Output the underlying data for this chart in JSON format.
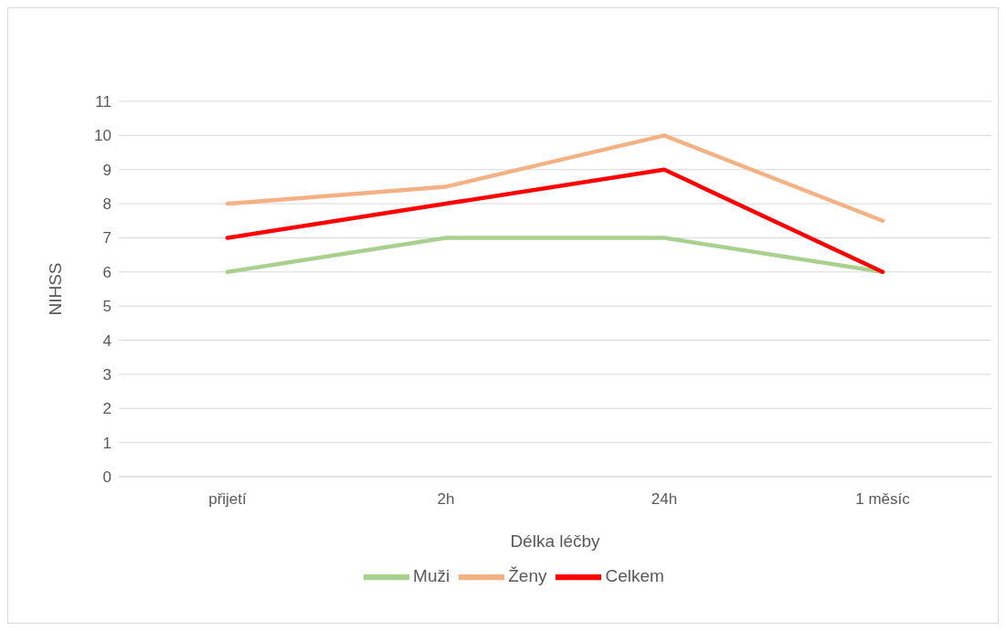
{
  "chart_data": {
    "type": "line",
    "xlabel": "Délka léčby",
    "ylabel": "NIHSS",
    "categories": [
      "přijetí",
      "2h",
      "24h",
      "1 měsíc"
    ],
    "series": [
      {
        "name": "Muži",
        "color": "#a9d18e",
        "values": [
          6,
          7,
          7,
          6
        ]
      },
      {
        "name": "Ženy",
        "color": "#f4b183",
        "values": [
          8,
          8.5,
          10,
          7.5
        ]
      },
      {
        "name": "Celkem",
        "color": "#ff0000",
        "values": [
          7,
          8,
          9,
          6
        ]
      }
    ],
    "ylim": [
      0,
      11
    ],
    "yticks": [
      0,
      1,
      2,
      3,
      4,
      5,
      6,
      7,
      8,
      9,
      10,
      11
    ],
    "grid": "y",
    "legend": "bottom",
    "marker": "none",
    "line_style": "solid"
  }
}
